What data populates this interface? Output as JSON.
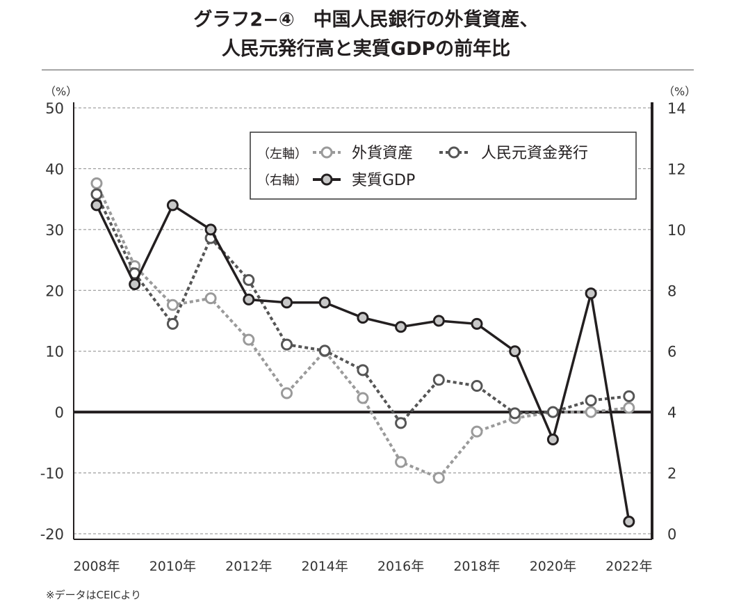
{
  "title": {
    "line1": "グラフ2−④　中国人民銀行の外貨資産、",
    "line2": "人民元発行高と実質GDPの前年比"
  },
  "note": "※データはCEICより",
  "chart_data": {
    "type": "line",
    "categories": [
      2008,
      2009,
      2010,
      2011,
      2012,
      2013,
      2014,
      2015,
      2016,
      2017,
      2018,
      2019,
      2020,
      2021,
      2022
    ],
    "x_tick_labels": [
      "2008年",
      "2010年",
      "2012年",
      "2014年",
      "2016年",
      "2018年",
      "2020年",
      "2022年"
    ],
    "left_axis": {
      "unit": "（%）",
      "ylim": [
        -20,
        50
      ],
      "ticks": [
        "-20",
        "-10",
        "0",
        "10",
        "20",
        "30",
        "40",
        "50"
      ]
    },
    "right_axis": {
      "unit": "（%）",
      "ylim": [
        0,
        14
      ],
      "ticks": [
        "0",
        "2",
        "4",
        "6",
        "8",
        "10",
        "12",
        "14"
      ]
    },
    "grid": true,
    "legend_position": "top-right",
    "legend": {
      "left_axis_tag": "（左軸）",
      "right_axis_tag": "（右軸）"
    },
    "series": [
      {
        "name": "外貨資産",
        "axis": "left",
        "style": "dotted",
        "color": "#9a9a9a",
        "values": [
          37.6,
          24.0,
          17.6,
          18.7,
          11.9,
          3.1,
          10.0,
          2.3,
          -8.2,
          -10.8,
          -3.2,
          -1.0,
          0.0,
          0.0,
          0.7
        ]
      },
      {
        "name": "人民元資金発行",
        "axis": "left",
        "style": "dotted",
        "color": "#555555",
        "values": [
          35.8,
          22.8,
          14.5,
          28.6,
          21.7,
          11.1,
          10.1,
          6.9,
          -1.8,
          5.3,
          4.3,
          -0.2,
          0.0,
          1.9,
          2.6
        ]
      },
      {
        "name": "実質GDP",
        "axis": "right",
        "style": "solid",
        "color": "#231f20",
        "values": [
          10.8,
          8.2,
          10.8,
          10.0,
          7.7,
          7.6,
          7.6,
          7.1,
          6.8,
          7.0,
          6.9,
          6.0,
          3.1,
          7.9,
          0.4
        ]
      }
    ]
  }
}
